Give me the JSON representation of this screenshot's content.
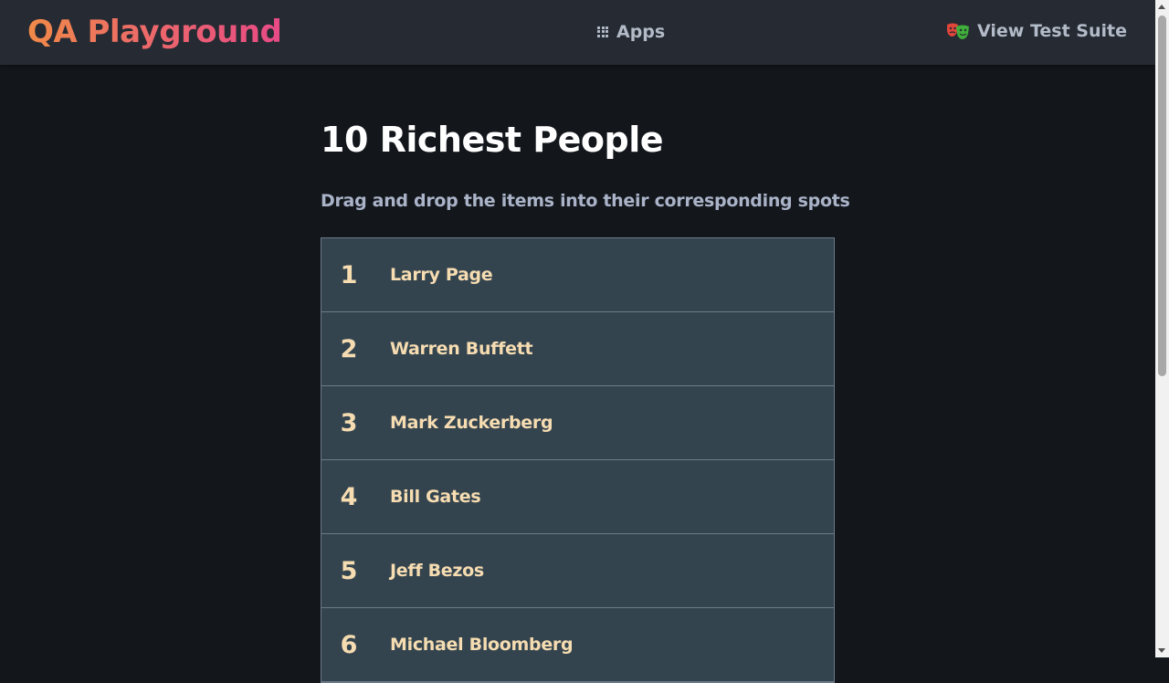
{
  "nav": {
    "brand": "QA Playground",
    "apps_label": "Apps",
    "apps_icon": "grid-icon",
    "suite_label": "View Test Suite",
    "suite_icon": "theater-masks-icon",
    "brand_gradient": [
      "#f08a48",
      "#e84a86"
    ]
  },
  "page": {
    "title": "10 Richest People",
    "subtitle": "Drag and drop the items into their corresponding spots"
  },
  "list": [
    {
      "rank": "1",
      "name": "Larry Page"
    },
    {
      "rank": "2",
      "name": "Warren Buffett"
    },
    {
      "rank": "3",
      "name": "Mark Zuckerberg"
    },
    {
      "rank": "4",
      "name": "Bill Gates"
    },
    {
      "rank": "5",
      "name": "Jeff Bezos"
    },
    {
      "rank": "6",
      "name": "Michael Bloomberg"
    }
  ],
  "colors": {
    "background": "#13171c",
    "navbar": "#262b33",
    "item_background": "#34444f",
    "item_text": "#f6dcb1",
    "item_border": "#6c7a87"
  }
}
